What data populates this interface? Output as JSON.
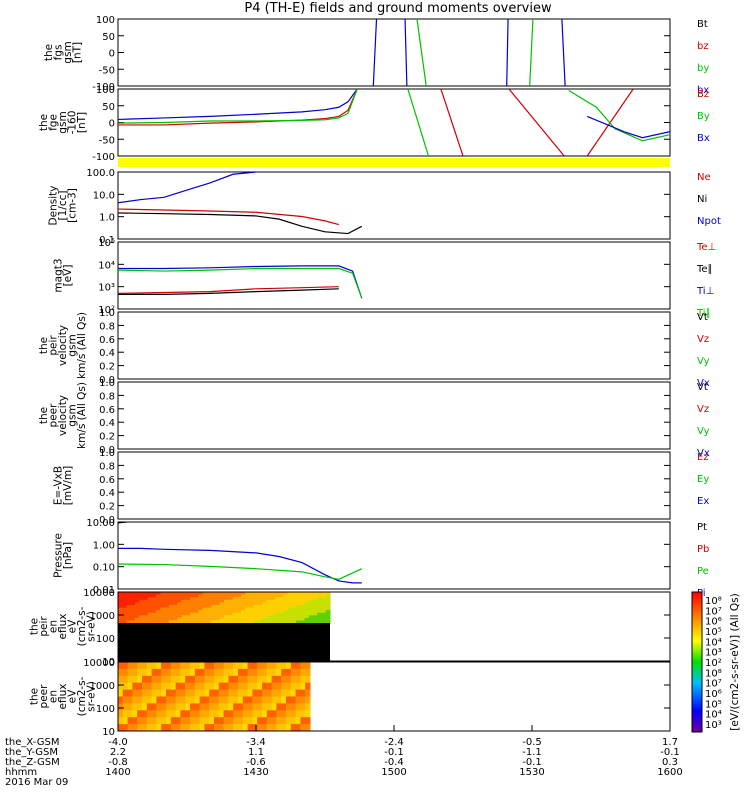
{
  "title": "P4 (TH-E) fields and ground moments overview",
  "colors": {
    "black": "#000000",
    "red": "#d00000",
    "green": "#00c000",
    "blue": "#0000d0",
    "yellow": "#ffff00"
  },
  "panels": [
    {
      "ylabel": [
        "the",
        "fgs",
        "gsm",
        "[nT]"
      ],
      "ticks": [
        "100",
        "50",
        "0",
        "-50",
        "-100"
      ],
      "legend": [
        {
          "t": "Bt",
          "c": "black"
        },
        {
          "t": "bz",
          "c": "red"
        },
        {
          "t": "by",
          "c": "green"
        },
        {
          "t": "bx",
          "c": "blue"
        }
      ]
    },
    {
      "ylabel": [
        "the",
        "fge",
        "gsm",
        "-160",
        "[nT]"
      ],
      "ticks": [
        "100",
        "50",
        "0",
        "-50",
        "-100"
      ],
      "legend": [
        {
          "t": "Bz",
          "c": "red"
        },
        {
          "t": "By",
          "c": "green"
        },
        {
          "t": "Bx",
          "c": "blue"
        }
      ]
    },
    {
      "ylabel": [
        "Density",
        "[1/cc]",
        "[cm-3]"
      ],
      "ticks": [
        "100.0",
        "10.0",
        "1.0",
        "0.1"
      ],
      "legend": [
        {
          "t": "Ne",
          "c": "red"
        },
        {
          "t": "Ni",
          "c": "black"
        },
        {
          "t": "Npot",
          "c": "blue"
        }
      ]
    },
    {
      "ylabel": [
        "magt3",
        "[eV]"
      ],
      "ticks": [
        "10⁵",
        "10⁴",
        "10³",
        "10²"
      ],
      "legend": [
        {
          "t": "Te⊥",
          "c": "red"
        },
        {
          "t": "Te∥",
          "c": "black"
        },
        {
          "t": "Ti⊥",
          "c": "blue"
        },
        {
          "t": "Ti∥",
          "c": "green"
        }
      ]
    },
    {
      "ylabel": [
        "the",
        "peir",
        "velocity",
        "gsm",
        "km/s (All Qs)"
      ],
      "ticks": [
        "1.0",
        "0.8",
        "0.6",
        "0.4",
        "0.2",
        "0.0"
      ],
      "legend": [
        {
          "t": "Vt",
          "c": "black"
        },
        {
          "t": "Vz",
          "c": "red"
        },
        {
          "t": "Vy",
          "c": "green"
        },
        {
          "t": "Vx",
          "c": "blue"
        }
      ]
    },
    {
      "ylabel": [
        "the",
        "peer",
        "velocity",
        "gsm",
        "km/s (All Qs)"
      ],
      "ticks": [
        "1.0",
        "0.8",
        "0.6",
        "0.4",
        "0.2",
        "0.0"
      ],
      "legend": [
        {
          "t": "Vt",
          "c": "black"
        },
        {
          "t": "Vz",
          "c": "red"
        },
        {
          "t": "Vy",
          "c": "green"
        },
        {
          "t": "Vx",
          "c": "blue"
        }
      ]
    },
    {
      "ylabel": [
        "E=-VxB",
        "[mV/m]"
      ],
      "ticks": [
        "1.0",
        "0.8",
        "0.6",
        "0.4",
        "0.2",
        "0.0"
      ],
      "legend": [
        {
          "t": "Ez",
          "c": "red"
        },
        {
          "t": "Ey",
          "c": "green"
        },
        {
          "t": "Ex",
          "c": "blue"
        }
      ]
    },
    {
      "ylabel": [
        "Pressure",
        "[nPa]"
      ],
      "ticks": [
        "10.00",
        "1.00",
        "0.10",
        "0.01"
      ],
      "legend": [
        {
          "t": "Pt",
          "c": "black"
        },
        {
          "t": "Pb",
          "c": "red"
        },
        {
          "t": "Pe",
          "c": "green"
        },
        {
          "t": "Pi",
          "c": "blue"
        }
      ]
    },
    {
      "ylabel": [
        "the",
        "peir",
        "en",
        "eflux",
        "eV",
        "(cm2-s-",
        "sr-eV)"
      ],
      "ticks": [
        "10000",
        "1000",
        "100",
        "10"
      ],
      "legend": []
    },
    {
      "ylabel": [
        "the",
        "peer",
        "en",
        "eflux",
        "eV",
        "(cm2-s-",
        "sr-eV)"
      ],
      "ticks": [
        "10000",
        "1000",
        "100",
        "10"
      ],
      "legend": []
    }
  ],
  "colorbar": {
    "ticks": [
      "10⁸",
      "10⁷",
      "10⁶",
      "10⁵",
      "10⁴",
      "10³",
      "10²",
      "10⁸",
      "10⁷",
      "10⁶",
      "10⁵",
      "10⁴",
      "10³"
    ],
    "label": "[eV/(cm2-s-sr-eV)] (All Qs)"
  },
  "footer": {
    "rows": [
      {
        "label": "the_X-GSM",
        "values": [
          "-4.0",
          "-3.4",
          "-2.4",
          "-0.5",
          "1.7"
        ]
      },
      {
        "label": "the_Y-GSM",
        "values": [
          "2.2",
          "1.1",
          "-0.1",
          "-1.1",
          "-0.1"
        ]
      },
      {
        "label": "the_Z-GSM",
        "values": [
          "-0.8",
          "-0.6",
          "-0.4",
          "-0.1",
          "0.3"
        ]
      },
      {
        "label": "hhmm",
        "values": [
          "1400",
          "1430",
          "1500",
          "1530",
          "1600"
        ]
      }
    ],
    "date": "2016 Mar 09"
  },
  "chart_data": {
    "type": "line",
    "title": "P4 (TH-E) fields and ground moments overview",
    "x": {
      "label": "hhmm",
      "ticks": [
        "1400",
        "1430",
        "1500",
        "1530",
        "1600"
      ],
      "range_min": [
        0,
        120
      ]
    },
    "panels": [
      {
        "name": "fgs gsm",
        "ylim": [
          -100,
          100
        ],
        "series": [
          {
            "name": "bx",
            "color": "blue",
            "x": [
              55.5,
              56.2
            ],
            "y": [
              -100,
              100
            ]
          },
          {
            "name": "bx",
            "color": "blue",
            "x": [
              62.4,
              62.8
            ],
            "y": [
              100,
              -100
            ]
          },
          {
            "name": "by",
            "color": "green",
            "x": [
              65,
              67
            ],
            "y": [
              100,
              -100
            ]
          },
          {
            "name": "bx",
            "color": "blue",
            "x": [
              84.5,
              84.8
            ],
            "y": [
              -100,
              100
            ]
          },
          {
            "name": "by",
            "color": "green",
            "x": [
              89.5,
              90.2
            ],
            "y": [
              -100,
              100
            ]
          },
          {
            "name": "bx",
            "color": "blue",
            "x": [
              96.5,
              97.2
            ],
            "y": [
              100,
              -100
            ]
          }
        ]
      },
      {
        "name": "fge gsm",
        "ylim": [
          -120,
          100
        ],
        "series": [
          {
            "name": "Bx",
            "color": "blue",
            "x": [
              0,
              10,
              20,
              30,
              40,
              45,
              48,
              50,
              52
            ],
            "y": [
              0,
              5,
              10,
              17,
              25,
              32,
              40,
              58,
              100
            ]
          },
          {
            "name": "Bz",
            "color": "red",
            "x": [
              0,
              10,
              20,
              30,
              40,
              45,
              48,
              50,
              52
            ],
            "y": [
              -18,
              -18,
              -12,
              -8,
              -2,
              3,
              10,
              30,
              100
            ]
          },
          {
            "name": "By",
            "color": "green",
            "x": [
              0,
              10,
              20,
              30,
              40,
              45,
              48,
              50,
              52
            ],
            "y": [
              -12,
              -10,
              -5,
              -5,
              -3,
              -1,
              5,
              20,
              100
            ]
          },
          {
            "name": "By",
            "color": "green",
            "x": [
              63,
              67.5
            ],
            "y": [
              100,
              -120
            ]
          },
          {
            "name": "Bz",
            "color": "red",
            "x": [
              70.2,
              75
            ],
            "y": [
              100,
              -120
            ]
          },
          {
            "name": "Bz",
            "color": "red",
            "x": [
              85,
              97
            ],
            "y": [
              100,
              -120
            ]
          },
          {
            "name": "Bz",
            "color": "red",
            "x": [
              102,
              112
            ],
            "y": [
              -120,
              100
            ]
          },
          {
            "name": "By",
            "color": "green",
            "x": [
              98,
              104,
              108,
              114,
              120
            ],
            "y": [
              95,
              40,
              -30,
              -70,
              -50
            ]
          },
          {
            "name": "Bx",
            "color": "blue",
            "x": [
              102,
              110,
              114,
              120
            ],
            "y": [
              10,
              -40,
              -60,
              -40
            ]
          }
        ]
      },
      {
        "name": "Density",
        "scale": "log",
        "ylim": [
          0.04,
          200
        ],
        "series": [
          {
            "name": "Npot",
            "color": "blue",
            "x": [
              0,
              5,
              10,
              15,
              20,
              25,
              30
            ],
            "y": [
              4,
              6,
              8,
              20,
              50,
              150,
              200
            ]
          },
          {
            "name": "Ne",
            "color": "red",
            "x": [
              0,
              10,
              20,
              30,
              40,
              45,
              48
            ],
            "y": [
              1.8,
              1.6,
              1.4,
              1.2,
              0.7,
              0.4,
              0.25
            ]
          },
          {
            "name": "Ni",
            "color": "black",
            "x": [
              0,
              10,
              20,
              30,
              35,
              40,
              45,
              50,
              53
            ],
            "y": [
              1.1,
              1.0,
              0.9,
              0.75,
              0.5,
              0.2,
              0.1,
              0.08,
              0.2
            ]
          }
        ]
      },
      {
        "name": "magt3",
        "scale": "log",
        "ylim": [
          100,
          100000
        ],
        "series": [
          {
            "name": "Ti⊥",
            "color": "blue",
            "x": [
              0,
              10,
              20,
              30,
              40,
              48,
              51,
              53
            ],
            "y": [
              6500,
              6500,
              7000,
              8000,
              8500,
              8500,
              5000,
              300
            ]
          },
          {
            "name": "Ti∥",
            "color": "green",
            "x": [
              0,
              10,
              20,
              30,
              40,
              48,
              51,
              53
            ],
            "y": [
              5500,
              5000,
              5500,
              6500,
              6500,
              6500,
              4000,
              300
            ]
          },
          {
            "name": "Te⊥",
            "color": "red",
            "x": [
              0,
              10,
              20,
              30,
              40,
              48
            ],
            "y": [
              500,
              550,
              600,
              800,
              900,
              1000
            ]
          },
          {
            "name": "Te∥",
            "color": "black",
            "x": [
              0,
              10,
              20,
              30,
              40,
              48
            ],
            "y": [
              450,
              450,
              500,
              600,
              700,
              800
            ]
          }
        ]
      },
      {
        "name": "peir velocity",
        "ylim": [
          0,
          1
        ],
        "series": []
      },
      {
        "name": "peer velocity",
        "ylim": [
          0,
          1
        ],
        "series": []
      },
      {
        "name": "E=-VxB",
        "ylim": [
          0,
          1
        ],
        "series": []
      },
      {
        "name": "Pressure",
        "scale": "log",
        "ylim": [
          0.01,
          20
        ],
        "series": [
          {
            "name": "Pi",
            "color": "blue",
            "x": [
              0,
              5,
              10,
              20,
              30,
              35,
              40,
              45,
              48,
              51,
              53
            ],
            "y": [
              1.0,
              1.0,
              0.9,
              0.8,
              0.6,
              0.4,
              0.2,
              0.05,
              0.025,
              0.02,
              0.02
            ]
          },
          {
            "name": "Pe",
            "color": "green",
            "x": [
              0,
              10,
              20,
              30,
              40,
              45,
              48,
              53
            ],
            "y": [
              0.17,
              0.16,
              0.13,
              0.1,
              0.07,
              0.04,
              0.03,
              0.1
            ]
          },
          {
            "name": "Pt",
            "color": "black",
            "x": [
              0,
              3,
              6
            ],
            "y": [
              18,
              21,
              24
            ]
          }
        ]
      }
    ]
  }
}
